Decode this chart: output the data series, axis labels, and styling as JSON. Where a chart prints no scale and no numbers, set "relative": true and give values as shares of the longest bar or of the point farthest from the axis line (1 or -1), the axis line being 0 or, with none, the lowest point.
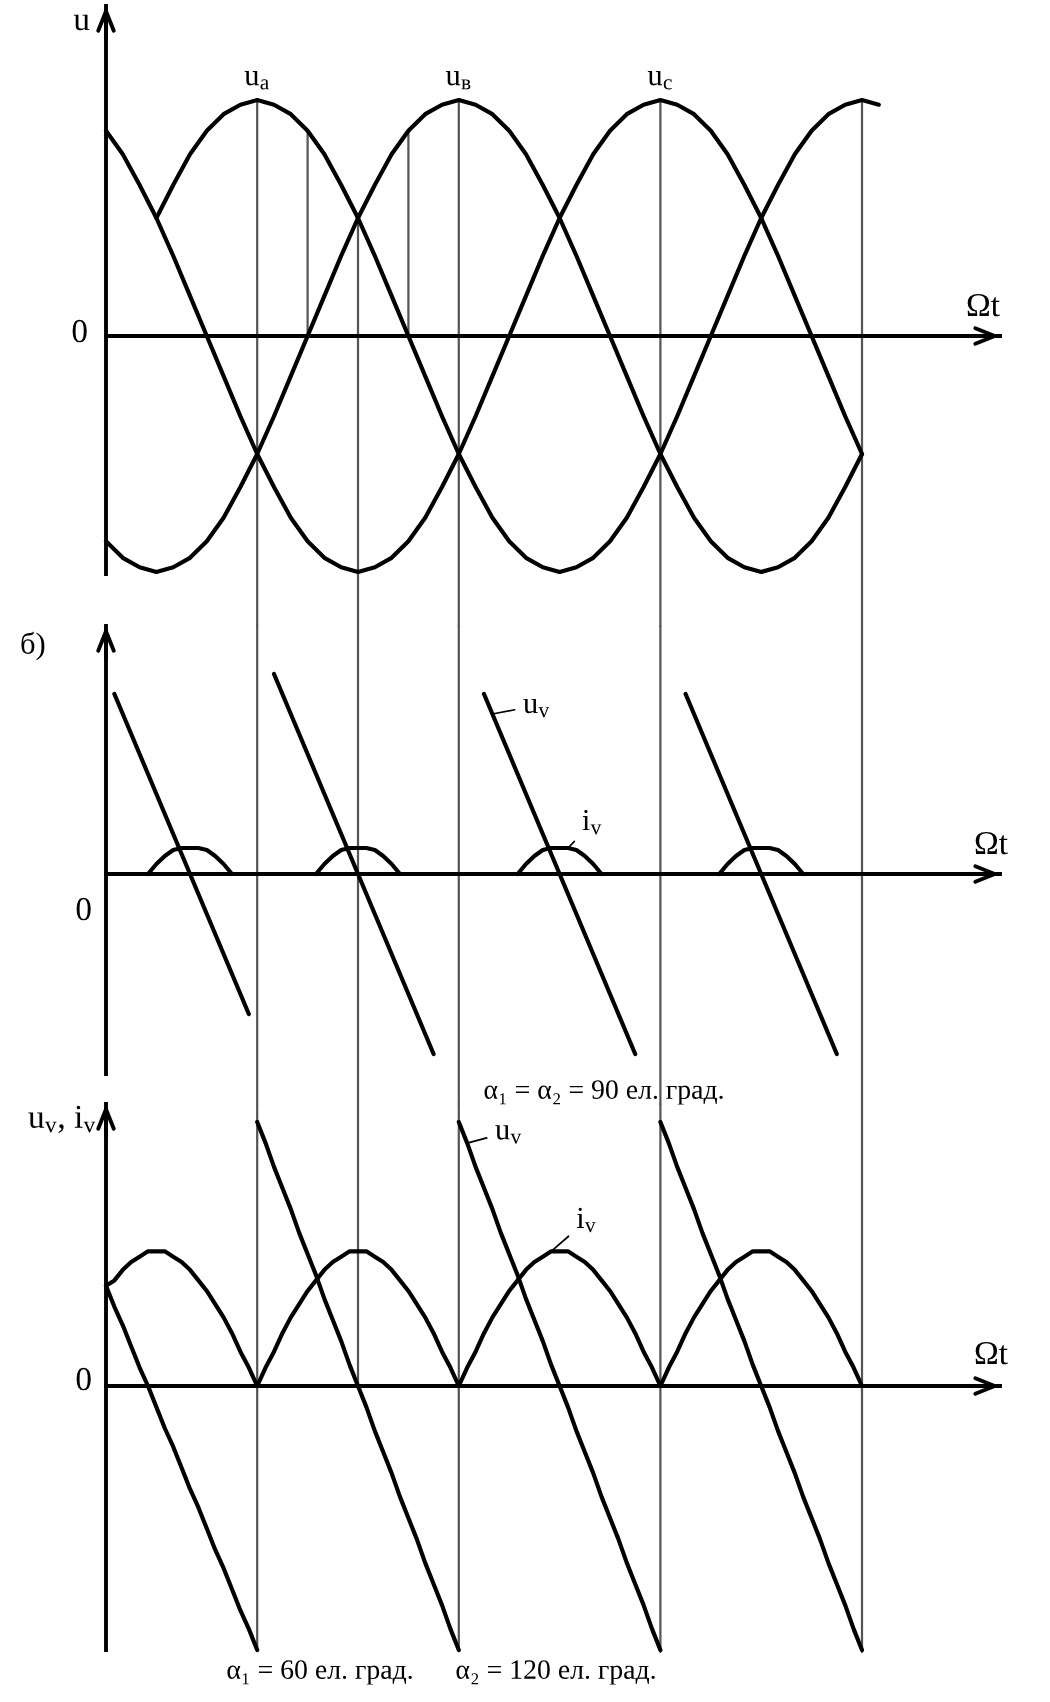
{
  "chart_data": [
    {
      "type": "line",
      "relative": true,
      "grid": "x",
      "ylabel": "u",
      "xlabel": "Ωt",
      "categories": [
        null,
        null,
        null,
        null,
        null,
        null,
        null,
        null,
        null,
        null,
        null,
        null,
        null,
        null,
        null,
        null,
        null,
        null,
        null,
        null,
        null,
        null,
        null,
        null,
        null,
        null,
        null,
        null,
        null,
        null,
        null,
        null,
        null,
        null,
        null,
        null,
        null,
        null,
        null,
        null,
        null,
        null,
        null,
        null,
        null,
        null,
        null
      ],
      "series": [
        {
          "name": "u$_{a}$",
          "color": "#000000",
          "values": [
            null,
            null,
            null,
            0.5,
            0.64,
            0.77,
            0.87,
            0.94,
            0.98,
            1,
            0.98,
            0.94,
            0.87,
            0.77,
            0.64,
            0.5,
            0.34,
            0.17,
            0,
            -0.17,
            -0.34,
            -0.5,
            -0.64,
            -0.77,
            -0.87,
            -0.94,
            -0.98,
            -1,
            -0.98,
            -0.94,
            -0.87,
            -0.77,
            -0.64,
            -0.5,
            -0.34,
            -0.17,
            0,
            0.17,
            0.34,
            0.5,
            0.64,
            0.77,
            0.87,
            0.94,
            0.98,
            1,
            0.98
          ]
        },
        {
          "name": "u$_{в}$",
          "color": "#000000",
          "values": [
            -0.87,
            -0.94,
            -0.98,
            -1,
            -0.98,
            -0.94,
            -0.87,
            -0.77,
            -0.64,
            -0.5,
            -0.34,
            -0.17,
            0,
            0.17,
            0.34,
            0.5,
            0.64,
            0.77,
            0.87,
            0.94,
            0.98,
            1,
            0.98,
            0.94,
            0.87,
            0.77,
            0.64,
            0.5,
            0.34,
            0.17,
            0,
            -0.17,
            -0.34,
            -0.5,
            -0.64,
            -0.77,
            -0.87,
            -0.94,
            -0.98,
            -1,
            -0.98,
            -0.94,
            -0.87,
            -0.77,
            -0.64,
            -0.5,
            null
          ]
        },
        {
          "name": "u$_{c}$",
          "color": "#000000",
          "values": [
            0.87,
            0.77,
            0.64,
            0.5,
            0.34,
            0.17,
            0,
            -0.17,
            -0.34,
            -0.5,
            -0.64,
            -0.77,
            -0.87,
            -0.94,
            -0.98,
            -1,
            -0.98,
            -0.94,
            -0.87,
            -0.77,
            -0.64,
            -0.5,
            -0.34,
            -0.17,
            0,
            0.17,
            0.34,
            0.5,
            0.64,
            0.77,
            0.87,
            0.94,
            0.98,
            1,
            0.98,
            0.94,
            0.87,
            0.77,
            0.64,
            0.5,
            0.34,
            0.17,
            0,
            -0.17,
            -0.34,
            -0.5,
            null
          ]
        }
      ],
      "annotations": [
        "0"
      ]
    },
    {
      "type": "line",
      "relative": true,
      "grid": "x",
      "title": "б)",
      "xlabel": "Ωt",
      "categories": [
        null,
        null,
        null,
        null,
        null,
        null,
        null,
        null,
        null,
        null,
        null,
        null,
        null,
        null,
        null,
        null,
        null,
        null,
        null,
        null,
        null,
        null,
        null,
        null,
        null,
        null,
        null,
        null,
        null,
        null,
        null,
        null,
        null,
        null,
        null,
        null,
        null,
        null,
        null,
        null,
        null,
        null,
        null,
        null,
        null,
        null,
        null,
        null,
        null,
        null,
        null,
        null,
        null,
        null,
        null,
        null,
        null,
        null,
        null,
        null,
        null,
        null,
        null,
        null,
        null,
        null,
        null,
        null,
        null,
        null,
        null,
        null,
        null,
        null,
        null,
        null,
        null,
        null,
        null,
        null,
        null,
        null,
        null,
        null,
        null,
        null,
        null,
        null,
        null,
        null,
        null,
        null,
        null
      ],
      "series": [
        {
          "color": "#000000",
          "values": [
            null,
            0.9,
            0.8,
            0.7,
            0.6,
            0.5,
            0.4,
            0.3,
            0.2,
            0.1,
            0,
            -0.1,
            -0.2,
            -0.3,
            -0.4,
            -0.5,
            -0.6,
            -0.7,
            null,
            null,
            null,
            null,
            null,
            null,
            null,
            null,
            null,
            null,
            null,
            null,
            null,
            null,
            null,
            null,
            null,
            null,
            null,
            null,
            null,
            null,
            null,
            null,
            null,
            null,
            null,
            null,
            null,
            null,
            null,
            null,
            null,
            null,
            null,
            null,
            null,
            null,
            null,
            null,
            null,
            null,
            null,
            null,
            null,
            null,
            null,
            null,
            null,
            null,
            null,
            null,
            null,
            null,
            null,
            null,
            null,
            null,
            null,
            null,
            null,
            null,
            null,
            null,
            null,
            null,
            null,
            null,
            null,
            null,
            null,
            null,
            null,
            null,
            null
          ]
        },
        {
          "color": "#000000",
          "values": [
            null,
            null,
            null,
            null,
            null,
            null,
            null,
            null,
            null,
            null,
            null,
            null,
            null,
            null,
            null,
            null,
            null,
            null,
            null,
            null,
            1,
            0.9,
            0.8,
            0.7,
            0.6,
            0.5,
            0.4,
            0.3,
            0.2,
            0.1,
            0,
            -0.1,
            -0.2,
            -0.3,
            -0.4,
            -0.5,
            -0.6,
            -0.7,
            -0.8,
            -0.9,
            null,
            null,
            null,
            null,
            null,
            null,
            null,
            null,
            null,
            null,
            null,
            null,
            null,
            null,
            null,
            null,
            null,
            null,
            null,
            null,
            null,
            null,
            null,
            null,
            null,
            null,
            null,
            null,
            null,
            null,
            null,
            null,
            null,
            null,
            null,
            null,
            null,
            null,
            null,
            null,
            null,
            null,
            null,
            null,
            null,
            null,
            null,
            null,
            null,
            null,
            null,
            null,
            null
          ]
        },
        {
          "name": "u$_{v}$",
          "color": "#000000",
          "values": [
            null,
            null,
            null,
            null,
            null,
            null,
            null,
            null,
            null,
            null,
            null,
            null,
            null,
            null,
            null,
            null,
            null,
            null,
            null,
            null,
            null,
            null,
            null,
            null,
            null,
            null,
            null,
            null,
            null,
            null,
            null,
            null,
            null,
            null,
            null,
            null,
            null,
            null,
            null,
            null,
            null,
            null,
            null,
            null,
            null,
            0.9,
            0.8,
            0.7,
            0.6,
            0.5,
            0.4,
            0.3,
            0.2,
            0.1,
            0,
            -0.1,
            -0.2,
            -0.3,
            -0.4,
            -0.5,
            -0.6,
            -0.7,
            -0.8,
            -0.9,
            null,
            null,
            null,
            null,
            null,
            null,
            null,
            null,
            null,
            null,
            null,
            null,
            null,
            null,
            null,
            null,
            null,
            null,
            null,
            null,
            null,
            null,
            null,
            null,
            null,
            null,
            null,
            null,
            null
          ]
        },
        {
          "color": "#000000",
          "values": [
            null,
            null,
            null,
            null,
            null,
            null,
            null,
            null,
            null,
            null,
            null,
            null,
            null,
            null,
            null,
            null,
            null,
            null,
            null,
            null,
            null,
            null,
            null,
            null,
            null,
            null,
            null,
            null,
            null,
            null,
            null,
            null,
            null,
            null,
            null,
            null,
            null,
            null,
            null,
            null,
            null,
            null,
            null,
            null,
            null,
            null,
            null,
            null,
            null,
            null,
            null,
            null,
            null,
            null,
            null,
            null,
            null,
            null,
            null,
            null,
            null,
            null,
            null,
            null,
            null,
            null,
            null,
            null,
            null,
            0.9,
            0.8,
            0.7,
            0.6,
            0.5,
            0.4,
            0.3,
            0.2,
            0.1,
            0,
            -0.1,
            -0.2,
            -0.3,
            -0.4,
            -0.5,
            -0.6,
            -0.7,
            -0.8,
            -0.9,
            null,
            null,
            null,
            null,
            null
          ]
        },
        {
          "color": "#000000",
          "values": [
            null,
            null,
            null,
            null,
            null,
            0,
            0.05,
            0.09,
            0.12,
            0.13,
            0.13,
            0.13,
            0.12,
            0.09,
            0.05,
            0,
            null,
            null,
            null,
            null,
            null,
            null,
            null,
            null,
            null,
            null,
            null,
            null,
            null,
            null,
            null,
            null,
            null,
            null,
            null,
            null,
            null,
            null,
            null,
            null,
            null,
            null,
            null,
            null,
            null,
            null,
            null,
            null,
            null,
            null,
            null,
            null,
            null,
            null,
            null,
            null,
            null,
            null,
            null,
            null,
            null,
            null,
            null,
            null,
            null,
            null,
            null,
            null,
            null,
            null,
            null,
            null,
            null,
            null,
            null,
            null,
            null,
            null,
            null,
            null,
            null,
            null,
            null,
            null,
            null,
            null,
            null,
            null,
            null,
            null,
            null,
            null,
            null
          ]
        },
        {
          "color": "#000000",
          "values": [
            null,
            null,
            null,
            null,
            null,
            null,
            null,
            null,
            null,
            null,
            null,
            null,
            null,
            null,
            null,
            null,
            null,
            null,
            null,
            null,
            null,
            null,
            null,
            null,
            null,
            0,
            0.05,
            0.09,
            0.12,
            0.13,
            0.13,
            0.13,
            0.12,
            0.09,
            0.05,
            0,
            null,
            null,
            null,
            null,
            null,
            null,
            null,
            null,
            null,
            null,
            null,
            null,
            null,
            null,
            null,
            null,
            null,
            null,
            null,
            null,
            null,
            null,
            null,
            null,
            null,
            null,
            null,
            null,
            null,
            null,
            null,
            null,
            null,
            null,
            null,
            null,
            null,
            null,
            null,
            null,
            null,
            null,
            null,
            null,
            null,
            null,
            null,
            null,
            null,
            null,
            null,
            null,
            null,
            null,
            null,
            null,
            null
          ]
        },
        {
          "name": "i$_{v}$",
          "color": "#000000",
          "values": [
            null,
            null,
            null,
            null,
            null,
            null,
            null,
            null,
            null,
            null,
            null,
            null,
            null,
            null,
            null,
            null,
            null,
            null,
            null,
            null,
            null,
            null,
            null,
            null,
            null,
            null,
            null,
            null,
            null,
            null,
            null,
            null,
            null,
            null,
            null,
            null,
            null,
            null,
            null,
            null,
            null,
            null,
            null,
            null,
            null,
            null,
            null,
            null,
            null,
            0,
            0.05,
            0.09,
            0.12,
            0.13,
            0.13,
            0.13,
            0.12,
            0.09,
            0.05,
            0,
            null,
            null,
            null,
            null,
            null,
            null,
            null,
            null,
            null,
            null,
            null,
            null,
            null,
            null,
            null,
            null,
            null,
            null,
            null,
            null,
            null,
            null,
            null,
            null,
            null,
            null,
            null,
            null,
            null,
            null,
            null,
            null,
            null
          ]
        },
        {
          "color": "#000000",
          "values": [
            null,
            null,
            null,
            null,
            null,
            null,
            null,
            null,
            null,
            null,
            null,
            null,
            null,
            null,
            null,
            null,
            null,
            null,
            null,
            null,
            null,
            null,
            null,
            null,
            null,
            null,
            null,
            null,
            null,
            null,
            null,
            null,
            null,
            null,
            null,
            null,
            null,
            null,
            null,
            null,
            null,
            null,
            null,
            null,
            null,
            null,
            null,
            null,
            null,
            null,
            null,
            null,
            null,
            null,
            null,
            null,
            null,
            null,
            null,
            null,
            null,
            null,
            null,
            null,
            null,
            null,
            null,
            null,
            null,
            null,
            null,
            null,
            null,
            0,
            0.05,
            0.09,
            0.12,
            0.13,
            0.13,
            0.13,
            0.12,
            0.09,
            0.05,
            0,
            null,
            null,
            null,
            null,
            null,
            null,
            null,
            null,
            null
          ]
        }
      ],
      "annotations": [
        "0",
        "α₁ = α₂ = 90 ел. град."
      ]
    },
    {
      "type": "line",
      "relative": true,
      "grid": "x",
      "ylabel": "u$_{v}$, i$_{v}$",
      "xlabel": "Ωt",
      "categories": [
        null,
        null,
        null,
        null,
        null,
        null,
        null,
        null,
        null,
        null,
        null,
        null,
        null,
        null,
        null,
        null,
        null,
        null,
        null,
        null,
        null,
        null,
        null,
        null,
        null,
        null,
        null,
        null,
        null,
        null,
        null,
        null,
        null,
        null,
        null,
        null,
        null,
        null,
        null,
        null,
        null,
        null,
        null,
        null,
        null,
        null,
        null,
        null,
        null,
        null,
        null,
        null,
        null,
        null,
        null,
        null,
        null,
        null,
        null,
        null,
        null,
        null,
        null,
        null,
        null,
        null,
        null,
        null,
        null,
        null,
        null,
        null,
        null,
        null,
        null,
        null,
        null,
        null,
        null,
        null,
        null,
        null,
        null,
        null,
        null,
        null,
        null,
        null,
        null,
        null,
        null,
        null,
        null
      ],
      "series": [
        {
          "color": "#000000",
          "values": [
            0.38,
            0.3,
            0.23,
            0.15,
            0.07,
            0,
            -0.08,
            -0.16,
            -0.23,
            -0.31,
            -0.39,
            -0.46,
            -0.54,
            -0.62,
            -0.69,
            -0.77,
            -0.85,
            -0.92,
            -1,
            null,
            null,
            null,
            null,
            null,
            null,
            null,
            null,
            null,
            null,
            null,
            null,
            null,
            null,
            null,
            null,
            null,
            null,
            null,
            null,
            null,
            null,
            null,
            null,
            null,
            null,
            null,
            null,
            null,
            null,
            null,
            null,
            null,
            null,
            null,
            null,
            null,
            null,
            null,
            null,
            null,
            null,
            null,
            null,
            null,
            null,
            null,
            null,
            null,
            null,
            null,
            null,
            null,
            null,
            null,
            null,
            null,
            null,
            null,
            null,
            null,
            null,
            null,
            null,
            null,
            null,
            null,
            null,
            null,
            null,
            null,
            null,
            null,
            null
          ]
        },
        {
          "color": "#000000",
          "values": [
            null,
            null,
            null,
            null,
            null,
            null,
            null,
            null,
            null,
            null,
            null,
            null,
            null,
            null,
            null,
            null,
            null,
            null,
            1,
            0.92,
            0.83,
            0.75,
            0.67,
            0.58,
            0.5,
            0.42,
            0.33,
            0.25,
            0.17,
            0.08,
            0,
            -0.08,
            -0.17,
            -0.25,
            -0.33,
            -0.42,
            -0.5,
            -0.58,
            -0.67,
            -0.75,
            -0.83,
            -0.92,
            -1,
            null,
            null,
            null,
            null,
            null,
            null,
            null,
            null,
            null,
            null,
            null,
            null,
            null,
            null,
            null,
            null,
            null,
            null,
            null,
            null,
            null,
            null,
            null,
            null,
            null,
            null,
            null,
            null,
            null,
            null,
            null,
            null,
            null,
            null,
            null,
            null,
            null,
            null,
            null,
            null,
            null,
            null,
            null,
            null,
            null,
            null,
            null,
            null,
            null,
            null
          ]
        },
        {
          "name": "u$_{v}$",
          "color": "#000000",
          "values": [
            null,
            null,
            null,
            null,
            null,
            null,
            null,
            null,
            null,
            null,
            null,
            null,
            null,
            null,
            null,
            null,
            null,
            null,
            null,
            null,
            null,
            null,
            null,
            null,
            null,
            null,
            null,
            null,
            null,
            null,
            null,
            null,
            null,
            null,
            null,
            null,
            null,
            null,
            null,
            null,
            null,
            null,
            1,
            0.92,
            0.83,
            0.75,
            0.67,
            0.58,
            0.5,
            0.42,
            0.33,
            0.25,
            0.17,
            0.08,
            0,
            -0.08,
            -0.17,
            -0.25,
            -0.33,
            -0.42,
            -0.5,
            -0.58,
            -0.67,
            -0.75,
            -0.83,
            -0.92,
            -1,
            null,
            null,
            null,
            null,
            null,
            null,
            null,
            null,
            null,
            null,
            null,
            null,
            null,
            null,
            null,
            null,
            null,
            null,
            null,
            null,
            null,
            null,
            null,
            null,
            null,
            null
          ]
        },
        {
          "color": "#000000",
          "values": [
            null,
            null,
            null,
            null,
            null,
            null,
            null,
            null,
            null,
            null,
            null,
            null,
            null,
            null,
            null,
            null,
            null,
            null,
            null,
            null,
            null,
            null,
            null,
            null,
            null,
            null,
            null,
            null,
            null,
            null,
            null,
            null,
            null,
            null,
            null,
            null,
            null,
            null,
            null,
            null,
            null,
            null,
            null,
            null,
            null,
            null,
            null,
            null,
            null,
            null,
            null,
            null,
            null,
            null,
            null,
            null,
            null,
            null,
            null,
            null,
            null,
            null,
            null,
            null,
            null,
            null,
            1,
            0.92,
            0.83,
            0.75,
            0.67,
            0.58,
            0.5,
            0.42,
            0.33,
            0.25,
            0.17,
            0.08,
            0,
            -0.08,
            -0.17,
            -0.25,
            -0.33,
            -0.42,
            -0.5,
            -0.58,
            -0.67,
            -0.75,
            -0.83,
            -0.92,
            -1,
            null,
            null
          ]
        },
        {
          "name": "i$_{v}$",
          "color": "#000000",
          "values": [
            0.38,
            0.4,
            0.44,
            0.47,
            0.49,
            0.51,
            0.51,
            0.51,
            0.49,
            0.47,
            0.44,
            0.4,
            0.36,
            0.31,
            0.26,
            0.2,
            0.13,
            0.07,
            0,
            0.07,
            0.13,
            0.2,
            0.26,
            0.31,
            0.36,
            0.4,
            0.44,
            0.47,
            0.49,
            0.51,
            0.51,
            0.51,
            0.49,
            0.47,
            0.44,
            0.4,
            0.36,
            0.31,
            0.26,
            0.2,
            0.13,
            0.07,
            0,
            0.07,
            0.13,
            0.2,
            0.26,
            0.31,
            0.36,
            0.4,
            0.44,
            0.47,
            0.49,
            0.51,
            0.51,
            0.51,
            0.49,
            0.47,
            0.44,
            0.4,
            0.36,
            0.31,
            0.26,
            0.2,
            0.13,
            0.07,
            0,
            0.07,
            0.13,
            0.2,
            0.26,
            0.31,
            0.36,
            0.4,
            0.44,
            0.47,
            0.49,
            0.51,
            0.51,
            0.51,
            0.49,
            0.47,
            0.44,
            0.4,
            0.36,
            0.31,
            0.26,
            0.2,
            0.13,
            0.07,
            0,
            null,
            null
          ]
        }
      ],
      "annotations": [
        "0",
        "α₁ = 60 ел. град.",
        "α₂ = 120 ел. град."
      ]
    }
  ]
}
